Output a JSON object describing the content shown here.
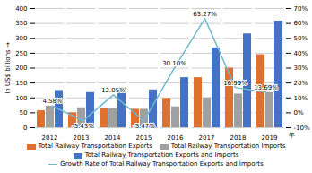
{
  "chart_data": {
    "type": "bar",
    "categories": [
      "2012",
      "2013",
      "2014",
      "2015",
      "2016",
      "2017",
      "2018",
      "2019"
    ],
    "xlabel": "年",
    "ylabel": "In US$ billions",
    "ylim": [
      0,
      400
    ],
    "yticks": [
      0,
      50,
      100,
      150,
      200,
      250,
      300,
      350,
      400
    ],
    "y2lim": [
      -10,
      70
    ],
    "y2ticks": [
      {
        "value": -10,
        "label": "-10%"
      },
      {
        "value": 0,
        "label": "0%"
      },
      {
        "value": 10,
        "label": "10%"
      },
      {
        "value": 20,
        "label": "20%"
      },
      {
        "value": 30,
        "label": "30%"
      },
      {
        "value": 40,
        "label": "40%"
      },
      {
        "value": 50,
        "label": "50%"
      },
      {
        "value": 60,
        "label": "60%"
      },
      {
        "value": 70,
        "label": "70%"
      }
    ],
    "grid": true,
    "legend": "bottom",
    "series": [
      {
        "name": "Total Railway Transportation Exports",
        "type": "bar",
        "color": "#E07030",
        "values": [
          57,
          50,
          65,
          62,
          98,
          168,
          200,
          245
        ]
      },
      {
        "name": "Total Railway Transportation Imports",
        "type": "bar",
        "color": "#A0A0A0",
        "values": [
          72,
          67,
          65,
          62,
          70,
          100,
          113,
          118
        ]
      },
      {
        "name": "Total Railway Transportation Exports and Imports",
        "type": "bar",
        "color": "#4472C4",
        "values": [
          125,
          118,
          135,
          127,
          168,
          268,
          315,
          358
        ]
      },
      {
        "name": "Growth Rate of Total Railway Transportation Exports and Imports",
        "type": "line",
        "axis": "y2",
        "color": "#70B8D0",
        "values": [
          4.58,
          -5.43,
          12.05,
          -5.47,
          30.1,
          63.27,
          16.99,
          13.69
        ],
        "data_labels": true,
        "value_labels": [
          "4.58%",
          "-5.43%",
          "12.05%",
          "-5.47%",
          "30.10%",
          "63.27%",
          "16.99%",
          "13.69%"
        ]
      }
    ]
  }
}
